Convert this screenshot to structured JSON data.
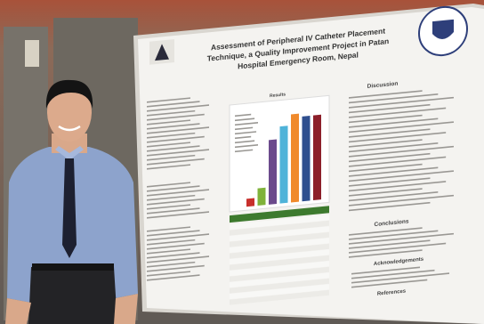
{
  "poster": {
    "title_lines": [
      "Assessment of Peripheral IV Catheter Placement",
      "Technique, a Quality Improvement Project in Patan",
      "Hospital Emergency Room, Nepal"
    ],
    "results_heading": "Results",
    "right_sections": [
      "Discussion",
      "Conclusions",
      "Acknowledgements",
      "References"
    ]
  },
  "chart_data": {
    "type": "bar",
    "values": [
      10,
      22,
      82,
      98,
      112,
      108,
      108
    ],
    "colors": [
      "#c8302c",
      "#7fb23a",
      "#6b4a8c",
      "#4fb3d9",
      "#f08a2c",
      "#2f4f8f",
      "#8c1f2a"
    ],
    "ylim": [
      0,
      120
    ]
  }
}
